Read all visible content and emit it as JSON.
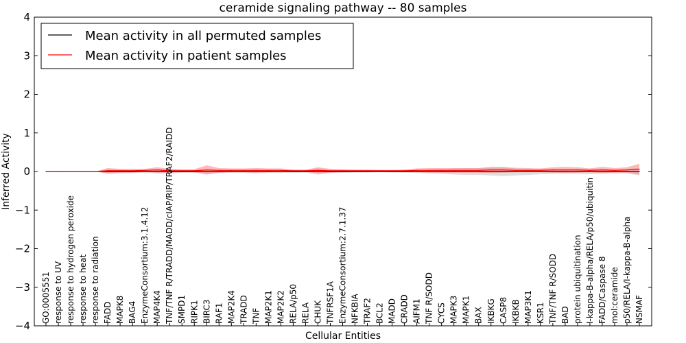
{
  "chart_data": {
    "type": "line",
    "title": "ceramide signaling pathway -- 80 samples",
    "xlabel": "Cellular Entities",
    "ylabel": "Inferred Activity",
    "ylim": [
      -4,
      4
    ],
    "yticks": [
      -4,
      -3,
      -2,
      -1,
      0,
      1,
      2,
      3,
      4
    ],
    "legend_position": "top-left",
    "colors": {
      "permuted": "#000000",
      "patient": "#ff0000",
      "permuted_band": "#c8c8c8",
      "patient_band": "#ff8080"
    },
    "categories": [
      "GO:0005551",
      "response to UV",
      "response to hydrogen peroxide",
      "response to heat",
      "response to radiation",
      "FADD",
      "MAPK8",
      "BAG4",
      "EnzymeConsortium:3.1.4.12",
      "MAP4K4",
      "TNF/TNF R/TRADD/MADD/cIAP/RIP/TRAF2/RAIDD",
      "SMPD1",
      "RIPK1",
      "BIRC3",
      "RAF1",
      "MAP2K4",
      "TRADD",
      "TNF",
      "MAP2K1",
      "MAP2K2",
      "RELA/p50",
      "RELA",
      "CHUK",
      "TNFRSF1A",
      "EnzymeConsortium:2.7.1.37",
      "NFKBIA",
      "TRAF2",
      "BCL2",
      "MADD",
      "CRADD",
      "AIFM1",
      "TNF R/SODD",
      "CYCS",
      "MAPK3",
      "MAPK1",
      "BAX",
      "IKBKG",
      "CASP8",
      "IKBKB",
      "MAP3K1",
      "KSR1",
      "TNF/TNF R/SODD",
      "BAD",
      "protein ubiquitination",
      "I-kappa-B-alpha/RELA/p50/ubiquitin",
      "FADD/Caspase 8",
      "mol:ceramide",
      "p50/RELA/I-kappa-B-alpha",
      "NSMAF"
    ],
    "series": [
      {
        "name": "Mean activity in all permuted samples",
        "values": [
          0,
          0,
          0,
          0,
          0,
          0,
          0,
          0,
          0,
          0,
          0,
          0,
          0,
          0,
          0,
          0,
          0,
          0,
          0,
          0,
          0,
          0,
          0,
          0,
          0,
          0,
          0,
          0,
          0,
          0,
          0,
          0,
          0,
          0,
          0,
          0,
          0,
          0,
          0,
          0,
          0,
          0,
          0,
          0,
          0,
          0,
          0,
          0,
          0
        ],
        "band": [
          0,
          0,
          0,
          0,
          0,
          0.06,
          0.05,
          0.04,
          0.04,
          0.05,
          0.05,
          0.04,
          0.04,
          0.05,
          0.04,
          0.04,
          0.04,
          0.05,
          0.04,
          0.04,
          0.04,
          0.03,
          0.08,
          0.04,
          0.04,
          0.03,
          0.03,
          0.02,
          0.03,
          0.03,
          0.04,
          0.05,
          0.06,
          0.08,
          0.09,
          0.09,
          0.1,
          0.12,
          0.1,
          0.09,
          0.07,
          0.06,
          0.05,
          0.06,
          0.07,
          0.06,
          0.05,
          0.05,
          0.1
        ]
      },
      {
        "name": "Mean activity in patient samples",
        "values": [
          0,
          0,
          0,
          0,
          0,
          0.02,
          0.02,
          0.02,
          0.03,
          0.04,
          0.02,
          0.02,
          0.02,
          0.04,
          0.03,
          0.03,
          0.03,
          0.03,
          0.03,
          0.03,
          0.02,
          0.02,
          0.03,
          0.02,
          0.02,
          0.02,
          0.02,
          0.02,
          0.02,
          0.02,
          0.03,
          0.03,
          0.03,
          0.03,
          0.03,
          0.03,
          0.04,
          0.04,
          0.03,
          0.03,
          0.03,
          0.04,
          0.04,
          0.04,
          0.03,
          0.04,
          0.03,
          0.04,
          0.06
        ],
        "band": [
          0,
          0,
          0,
          0,
          0,
          0.07,
          0.05,
          0.05,
          0.04,
          0.07,
          0.05,
          0.04,
          0.04,
          0.12,
          0.06,
          0.05,
          0.05,
          0.06,
          0.05,
          0.05,
          0.03,
          0.03,
          0.08,
          0.05,
          0.04,
          0.03,
          0.03,
          0.02,
          0.02,
          0.03,
          0.05,
          0.06,
          0.06,
          0.06,
          0.06,
          0.06,
          0.08,
          0.07,
          0.05,
          0.05,
          0.05,
          0.07,
          0.08,
          0.07,
          0.05,
          0.08,
          0.06,
          0.07,
          0.14
        ]
      }
    ]
  }
}
